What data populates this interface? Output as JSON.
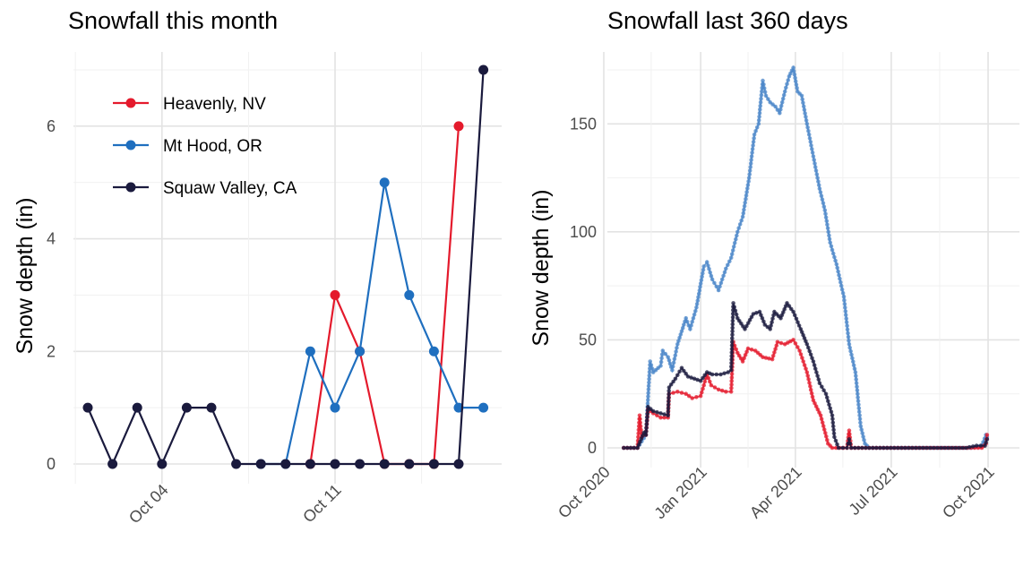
{
  "chart_data": [
    {
      "type": "line",
      "title": "Snowfall this month",
      "xlabel": "",
      "ylabel": "Snow depth (in)",
      "ylim": [
        0,
        7
      ],
      "yticks": [
        0,
        2,
        4,
        6
      ],
      "x_ticks": [
        {
          "label": "Oct 04",
          "day": 4
        },
        {
          "label": "Oct 11",
          "day": 11
        }
      ],
      "legend_position": "top-left",
      "series": [
        {
          "name": "Heavenly, NV",
          "color": "#e41a2c",
          "points": [
            [
              10,
              0
            ],
            [
              11,
              3
            ],
            [
              12,
              2
            ],
            [
              13,
              0
            ],
            [
              14,
              0
            ],
            [
              15,
              0
            ],
            [
              16,
              6
            ]
          ]
        },
        {
          "name": "Mt Hood, OR",
          "color": "#1f6fbf",
          "points": [
            [
              8,
              0
            ],
            [
              9,
              0
            ],
            [
              10,
              2
            ],
            [
              11,
              1
            ],
            [
              12,
              2
            ],
            [
              13,
              5
            ],
            [
              14,
              3
            ],
            [
              15,
              2
            ],
            [
              16,
              1
            ],
            [
              17,
              1
            ]
          ]
        },
        {
          "name": "Squaw Valley, CA",
          "color": "#1a1a3d",
          "points": [
            [
              1,
              1
            ],
            [
              2,
              0
            ],
            [
              3,
              1
            ],
            [
              4,
              0
            ],
            [
              5,
              1
            ],
            [
              6,
              1
            ],
            [
              7,
              0
            ],
            [
              8,
              0
            ],
            [
              9,
              0
            ],
            [
              10,
              0
            ],
            [
              11,
              0
            ],
            [
              12,
              0
            ],
            [
              13,
              0
            ],
            [
              14,
              0
            ],
            [
              15,
              0
            ],
            [
              16,
              0
            ],
            [
              17,
              7
            ]
          ]
        }
      ]
    },
    {
      "type": "line",
      "title": "Snowfall  last 360 days",
      "xlabel": "",
      "ylabel": "Snow depth (in)",
      "ylim": [
        0,
        175
      ],
      "yticks": [
        0,
        50,
        100,
        150
      ],
      "x_ticks": [
        "Oct 2020",
        "Jan 2021",
        "Apr 2021",
        "Jul 2021",
        "Oct 2021"
      ],
      "series": [
        {
          "color": "#4a86c8",
          "points": [
            [
              "2020-10-20",
              0
            ],
            [
              "2020-11-02",
              0
            ],
            [
              "2020-11-10",
              6
            ],
            [
              "2020-11-14",
              40
            ],
            [
              "2020-11-17",
              35
            ],
            [
              "2020-11-24",
              38
            ],
            [
              "2020-11-26",
              45
            ],
            [
              "2020-12-01",
              42
            ],
            [
              "2020-12-05",
              36
            ],
            [
              "2020-12-10",
              48
            ],
            [
              "2020-12-18",
              60
            ],
            [
              "2020-12-22",
              55
            ],
            [
              "2020-12-28",
              65
            ],
            [
              "2021-01-04",
              84
            ],
            [
              "2021-01-07",
              86
            ],
            [
              "2021-01-12",
              78
            ],
            [
              "2021-01-18",
              73
            ],
            [
              "2021-01-25",
              83
            ],
            [
              "2021-01-30",
              88
            ],
            [
              "2021-02-05",
              100
            ],
            [
              "2021-02-10",
              107
            ],
            [
              "2021-02-16",
              125
            ],
            [
              "2021-02-21",
              145
            ],
            [
              "2021-02-25",
              150
            ],
            [
              "2021-03-01",
              170
            ],
            [
              "2021-03-04",
              163
            ],
            [
              "2021-03-08",
              160
            ],
            [
              "2021-03-13",
              158
            ],
            [
              "2021-03-17",
              155
            ],
            [
              "2021-03-22",
              165
            ],
            [
              "2021-03-26",
              172
            ],
            [
              "2021-03-30",
              176
            ],
            [
              "2021-04-03",
              165
            ],
            [
              "2021-04-07",
              163
            ],
            [
              "2021-04-12",
              150
            ],
            [
              "2021-04-18",
              135
            ],
            [
              "2021-04-24",
              120
            ],
            [
              "2021-04-29",
              110
            ],
            [
              "2021-05-04",
              95
            ],
            [
              "2021-05-10",
              85
            ],
            [
              "2021-05-17",
              70
            ],
            [
              "2021-05-22",
              48
            ],
            [
              "2021-05-28",
              35
            ],
            [
              "2021-06-02",
              10
            ],
            [
              "2021-06-06",
              2
            ],
            [
              "2021-06-10",
              0
            ],
            [
              "2021-09-15",
              0
            ],
            [
              "2021-09-25",
              1
            ],
            [
              "2021-09-29",
              6
            ],
            [
              "2021-09-30",
              5
            ]
          ]
        },
        {
          "color": "#e41a2c",
          "points": [
            [
              "2020-10-20",
              0
            ],
            [
              "2020-11-02",
              0
            ],
            [
              "2020-11-04",
              15
            ],
            [
              "2020-11-06",
              5
            ],
            [
              "2020-11-10",
              6
            ],
            [
              "2020-11-12",
              18
            ],
            [
              "2020-11-17",
              16
            ],
            [
              "2020-11-24",
              14
            ],
            [
              "2020-12-01",
              14
            ],
            [
              "2020-12-02",
              25
            ],
            [
              "2020-12-10",
              26
            ],
            [
              "2020-12-18",
              25
            ],
            [
              "2020-12-24",
              23
            ],
            [
              "2021-01-01",
              24
            ],
            [
              "2021-01-07",
              34
            ],
            [
              "2021-01-11",
              29
            ],
            [
              "2021-01-18",
              27
            ],
            [
              "2021-01-25",
              26
            ],
            [
              "2021-01-30",
              26
            ],
            [
              "2021-02-01",
              49
            ],
            [
              "2021-02-05",
              44
            ],
            [
              "2021-02-10",
              40
            ],
            [
              "2021-02-15",
              46
            ],
            [
              "2021-02-22",
              45
            ],
            [
              "2021-03-01",
              42
            ],
            [
              "2021-03-10",
              41
            ],
            [
              "2021-03-15",
              49
            ],
            [
              "2021-03-22",
              48
            ],
            [
              "2021-03-30",
              50
            ],
            [
              "2021-04-05",
              45
            ],
            [
              "2021-04-12",
              35
            ],
            [
              "2021-04-18",
              22
            ],
            [
              "2021-04-25",
              15
            ],
            [
              "2021-05-02",
              2
            ],
            [
              "2021-05-06",
              0
            ],
            [
              "2021-05-20",
              0
            ],
            [
              "2021-05-22",
              8
            ],
            [
              "2021-05-24",
              0
            ],
            [
              "2021-09-25",
              0
            ],
            [
              "2021-09-29",
              2
            ],
            [
              "2021-09-30",
              6
            ]
          ]
        },
        {
          "color": "#1a1a3d",
          "points": [
            [
              "2020-10-20",
              0
            ],
            [
              "2020-11-02",
              0
            ],
            [
              "2020-11-08",
              7
            ],
            [
              "2020-11-10",
              6
            ],
            [
              "2020-11-12",
              19
            ],
            [
              "2020-11-17",
              17
            ],
            [
              "2020-11-24",
              16
            ],
            [
              "2020-12-01",
              15
            ],
            [
              "2020-12-02",
              28
            ],
            [
              "2020-12-08",
              32
            ],
            [
              "2020-12-14",
              37
            ],
            [
              "2020-12-20",
              33
            ],
            [
              "2021-01-01",
              31
            ],
            [
              "2021-01-07",
              35
            ],
            [
              "2021-01-12",
              34
            ],
            [
              "2021-01-20",
              34
            ],
            [
              "2021-01-27",
              35
            ],
            [
              "2021-01-30",
              36
            ],
            [
              "2021-02-01",
              67
            ],
            [
              "2021-02-05",
              60
            ],
            [
              "2021-02-12",
              55
            ],
            [
              "2021-02-20",
              62
            ],
            [
              "2021-02-26",
              63
            ],
            [
              "2021-03-03",
              57
            ],
            [
              "2021-03-08",
              55
            ],
            [
              "2021-03-12",
              63
            ],
            [
              "2021-03-18",
              60
            ],
            [
              "2021-03-24",
              67
            ],
            [
              "2021-03-30",
              63
            ],
            [
              "2021-04-06",
              55
            ],
            [
              "2021-04-12",
              48
            ],
            [
              "2021-04-18",
              40
            ],
            [
              "2021-04-24",
              30
            ],
            [
              "2021-04-30",
              25
            ],
            [
              "2021-05-06",
              15
            ],
            [
              "2021-05-08",
              5
            ],
            [
              "2021-05-12",
              0
            ],
            [
              "2021-05-20",
              0
            ],
            [
              "2021-05-22",
              4
            ],
            [
              "2021-05-24",
              0
            ],
            [
              "2021-09-10",
              0
            ],
            [
              "2021-09-20",
              1
            ],
            [
              "2021-09-28",
              1
            ],
            [
              "2021-09-30",
              4
            ]
          ]
        }
      ]
    }
  ]
}
